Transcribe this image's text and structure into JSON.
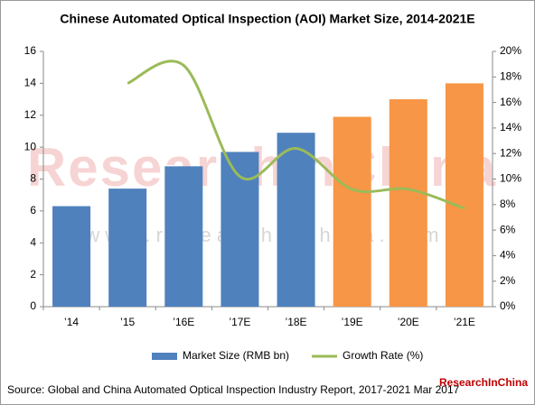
{
  "chart_data": {
    "type": "bar-line",
    "title": "Chinese Automated Optical Inspection (AOI) Market Size, 2014-2021E",
    "categories": [
      "’14",
      "’15",
      "’16E",
      "’17E",
      "’18E",
      "’19E",
      "’20E",
      "’21E"
    ],
    "series": [
      {
        "name": "Market Size (RMB bn)",
        "color": "#4f81bd",
        "point_colors": [
          "#4f81bd",
          "#4f81bd",
          "#4f81bd",
          "#4f81bd",
          "#4f81bd",
          "#f79646",
          "#f79646",
          "#f79646"
        ],
        "values": [
          6.3,
          7.4,
          8.8,
          9.7,
          10.9,
          11.9,
          13.0,
          14.0
        ]
      },
      {
        "name": "Growth Rate (%)",
        "color": "#9bbb59",
        "axis": "y2",
        "values": [
          null,
          17.5,
          18.9,
          10.2,
          12.4,
          9.2,
          9.2,
          7.7
        ]
      }
    ],
    "ylim": [
      0,
      16
    ],
    "yticks": [
      0,
      2,
      4,
      6,
      8,
      10,
      12,
      14,
      16
    ],
    "y2lim": [
      0,
      20
    ],
    "y2ticks": [
      {
        "value": 0,
        "label": "0%"
      },
      {
        "value": 2,
        "label": "2%"
      },
      {
        "value": 4,
        "label": "4%"
      },
      {
        "value": 6,
        "label": "6%"
      },
      {
        "value": 8,
        "label": "8%"
      },
      {
        "value": 10,
        "label": "10%"
      },
      {
        "value": 12,
        "label": "12%"
      },
      {
        "value": 14,
        "label": "14%"
      },
      {
        "value": 16,
        "label": "16%"
      },
      {
        "value": 18,
        "label": "18%"
      },
      {
        "value": 20,
        "label": "20%"
      }
    ],
    "legend": "bottom",
    "source": "Source: Global and China Automated Optical Inspection Industry Report, 2017-2021   Mar 2017",
    "watermark": "ResearchInChina",
    "watermark_url": "w w w . r e s e a r c h i n c h i n a . c o m",
    "logo": "ResearchInChina"
  }
}
